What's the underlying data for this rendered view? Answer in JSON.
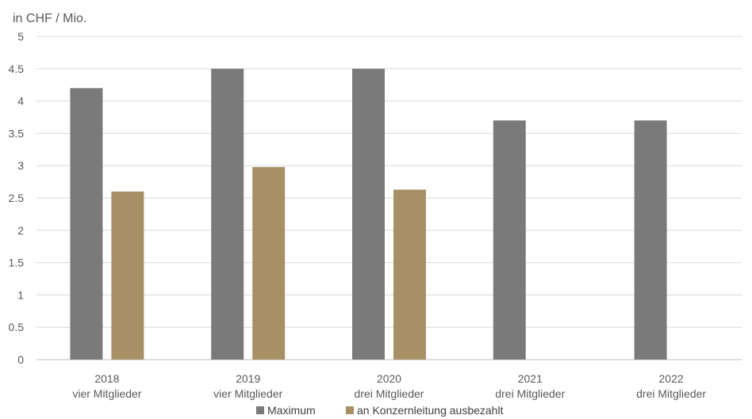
{
  "chart_data": {
    "type": "bar",
    "unit_label": "in CHF / Mio.",
    "categories": [
      [
        "2018",
        "vier Mitglieder"
      ],
      [
        "2019",
        "vier Mitglieder"
      ],
      [
        "2020",
        "drei Mitglieder"
      ],
      [
        "2021",
        "drei Mitglieder"
      ],
      [
        "2022",
        "drei Mitglieder"
      ]
    ],
    "series": [
      {
        "name": "Maximum",
        "color": "#7a7a7a",
        "values": [
          4.2,
          4.5,
          4.5,
          3.7,
          3.7
        ]
      },
      {
        "name": "an Konzernleitung ausbezahlt",
        "color": "#a89066",
        "values": [
          2.6,
          2.98,
          2.63,
          null,
          null
        ]
      }
    ],
    "y_ticks": [
      "0",
      "0.5",
      "1",
      "1.5",
      "2",
      "2.5",
      "3",
      "3.5",
      "4",
      "4.5",
      "5"
    ],
    "ylim": [
      0,
      5
    ],
    "grid": true,
    "legend_position": "bottom"
  }
}
